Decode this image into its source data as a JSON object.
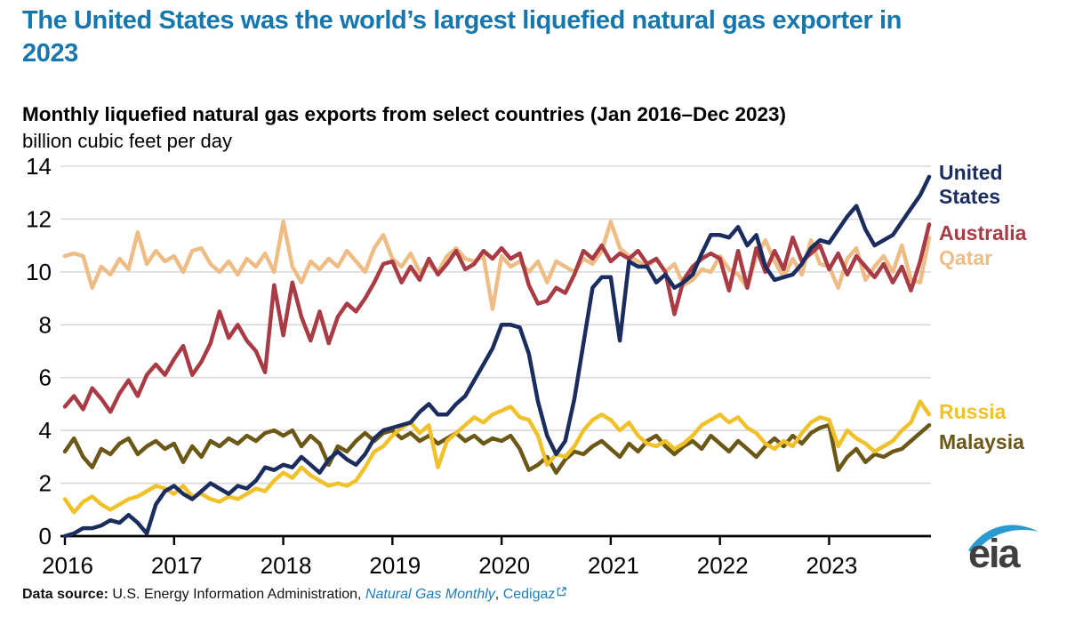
{
  "header": {
    "title_line1": "The United States was the world’s largest liquefied natural gas exporter in",
    "title_line2": "2023",
    "title_color": "#1577ad"
  },
  "chart_data": {
    "type": "line",
    "title": "Monthly liquefied natural gas exports from select countries (Jan 2016–Dec 2023)",
    "ylabel": "billion cubic feet per day",
    "xlabel": "",
    "ylim": [
      0,
      14
    ],
    "y_ticks": [
      0,
      2,
      4,
      6,
      8,
      10,
      12,
      14
    ],
    "x_tick_labels": [
      "2016",
      "2017",
      "2018",
      "2019",
      "2020",
      "2021",
      "2022",
      "2023"
    ],
    "months_span": "Jan 2016 - Dec 2023, monthly",
    "grid": "horizontal",
    "legend_position": "right",
    "axis_color": "#000000",
    "grid_color": "#d9d9d9",
    "series": [
      {
        "name": "United States",
        "color": "#1b2c5e",
        "values": [
          0.0,
          0.1,
          0.3,
          0.3,
          0.4,
          0.6,
          0.5,
          0.8,
          0.5,
          0.1,
          1.2,
          1.7,
          1.9,
          1.6,
          1.4,
          1.7,
          2.0,
          1.8,
          1.6,
          1.9,
          1.8,
          2.1,
          2.6,
          2.5,
          2.7,
          2.6,
          3.0,
          2.7,
          2.4,
          2.9,
          3.2,
          2.9,
          2.7,
          3.1,
          3.7,
          4.0,
          4.1,
          4.2,
          4.3,
          4.7,
          5.0,
          4.6,
          4.6,
          5.0,
          5.3,
          5.9,
          6.5,
          7.1,
          8.0,
          8.0,
          7.9,
          6.9,
          5.1,
          3.8,
          3.1,
          3.6,
          5.2,
          7.3,
          9.4,
          9.8,
          9.8,
          7.4,
          10.4,
          10.2,
          10.2,
          9.6,
          9.9,
          9.4,
          9.6,
          9.9,
          10.7,
          11.4,
          11.4,
          11.3,
          11.7,
          11.0,
          11.4,
          10.2,
          9.7,
          9.8,
          9.9,
          10.3,
          10.9,
          11.2,
          11.1,
          11.6,
          12.1,
          12.5,
          11.6,
          11.0,
          11.2,
          11.4,
          11.9,
          12.4,
          12.9,
          13.6
        ]
      },
      {
        "name": "Australia",
        "color": "#a93b45",
        "values": [
          4.9,
          5.3,
          4.8,
          5.6,
          5.2,
          4.7,
          5.4,
          5.9,
          5.3,
          6.1,
          6.5,
          6.1,
          6.7,
          7.2,
          6.1,
          6.6,
          7.3,
          8.5,
          7.5,
          8.0,
          7.4,
          7.0,
          6.2,
          9.5,
          7.6,
          9.6,
          8.3,
          7.4,
          8.5,
          7.3,
          8.3,
          8.8,
          8.5,
          9.0,
          9.6,
          10.3,
          10.4,
          9.6,
          10.2,
          9.7,
          10.5,
          9.9,
          10.3,
          10.8,
          10.1,
          10.3,
          10.8,
          10.5,
          10.9,
          10.5,
          10.7,
          9.5,
          8.8,
          8.9,
          9.4,
          9.2,
          9.9,
          10.8,
          10.5,
          11.0,
          10.4,
          10.7,
          10.5,
          10.8,
          10.3,
          10.5,
          10.0,
          8.4,
          9.7,
          10.2,
          10.5,
          10.7,
          10.5,
          9.3,
          10.8,
          9.4,
          10.9,
          10.0,
          10.8,
          10.1,
          11.3,
          10.4,
          10.7,
          11.0,
          10.1,
          10.7,
          9.9,
          10.6,
          10.2,
          9.8,
          10.3,
          9.6,
          10.2,
          9.3,
          10.4,
          11.8
        ]
      },
      {
        "name": "Qatar",
        "color": "#eebd86",
        "values": [
          10.6,
          10.7,
          10.6,
          9.4,
          10.2,
          9.9,
          10.5,
          10.1,
          11.5,
          10.3,
          10.8,
          10.4,
          10.6,
          10.0,
          10.8,
          10.9,
          10.3,
          10.0,
          10.4,
          9.9,
          10.5,
          10.2,
          10.7,
          10.0,
          11.9,
          10.2,
          9.6,
          10.4,
          10.1,
          10.5,
          10.2,
          10.8,
          10.4,
          10.0,
          10.9,
          11.4,
          10.5,
          10.2,
          10.7,
          10.0,
          10.3,
          10.0,
          10.6,
          10.9,
          10.5,
          10.4,
          10.6,
          8.6,
          10.6,
          10.2,
          10.4,
          10.0,
          10.4,
          9.6,
          10.4,
          10.2,
          10.0,
          10.5,
          10.3,
          10.8,
          11.9,
          10.9,
          10.6,
          10.4,
          10.2,
          10.5,
          10.0,
          10.3,
          9.5,
          9.7,
          10.1,
          10.0,
          10.6,
          10.1,
          9.9,
          9.4,
          10.6,
          11.2,
          10.4,
          9.8,
          10.5,
          9.9,
          11.2,
          10.3,
          10.2,
          9.4,
          10.5,
          10.9,
          9.7,
          10.2,
          10.6,
          10.0,
          11.0,
          9.7,
          9.6,
          11.3
        ]
      },
      {
        "name": "Russia",
        "color": "#f1c12b",
        "values": [
          1.4,
          0.9,
          1.3,
          1.5,
          1.2,
          1.0,
          1.2,
          1.4,
          1.5,
          1.7,
          1.9,
          1.8,
          1.6,
          1.9,
          1.5,
          1.6,
          1.4,
          1.3,
          1.5,
          1.4,
          1.6,
          1.8,
          1.7,
          2.1,
          2.4,
          2.2,
          2.6,
          2.3,
          2.1,
          1.9,
          2.0,
          1.9,
          2.1,
          2.6,
          3.2,
          3.4,
          3.8,
          4.1,
          4.3,
          3.9,
          4.2,
          2.6,
          3.6,
          3.9,
          4.2,
          4.5,
          4.3,
          4.6,
          4.75,
          4.9,
          4.5,
          4.4,
          3.8,
          2.7,
          3.1,
          3.0,
          3.4,
          4.0,
          4.4,
          4.6,
          4.4,
          4.0,
          4.3,
          3.8,
          3.5,
          3.4,
          3.6,
          3.3,
          3.5,
          3.8,
          4.2,
          4.4,
          4.6,
          4.3,
          4.5,
          4.1,
          3.9,
          3.5,
          3.3,
          3.6,
          3.4,
          3.9,
          4.3,
          4.5,
          4.4,
          3.4,
          4.0,
          3.7,
          3.5,
          3.2,
          3.4,
          3.6,
          4.0,
          4.3,
          5.1,
          4.6
        ]
      },
      {
        "name": "Malaysia",
        "color": "#6b5817",
        "values": [
          3.2,
          3.7,
          3.0,
          2.6,
          3.3,
          3.1,
          3.5,
          3.7,
          3.1,
          3.4,
          3.6,
          3.3,
          3.5,
          2.8,
          3.4,
          3.0,
          3.6,
          3.4,
          3.7,
          3.5,
          3.8,
          3.6,
          3.9,
          4.0,
          3.8,
          4.0,
          3.4,
          3.8,
          3.5,
          2.7,
          3.4,
          3.2,
          3.6,
          3.9,
          3.6,
          3.9,
          4.0,
          3.7,
          3.9,
          3.6,
          3.8,
          3.5,
          3.7,
          3.9,
          3.6,
          3.8,
          3.5,
          3.7,
          3.6,
          3.8,
          3.3,
          2.5,
          2.7,
          3.0,
          2.4,
          2.9,
          3.2,
          3.1,
          3.4,
          3.6,
          3.3,
          3.0,
          3.5,
          3.2,
          3.6,
          3.8,
          3.4,
          3.1,
          3.4,
          3.6,
          3.3,
          3.8,
          3.5,
          3.2,
          3.6,
          3.3,
          3.0,
          3.4,
          3.7,
          3.4,
          3.8,
          3.5,
          3.9,
          4.1,
          4.2,
          2.5,
          3.0,
          3.3,
          2.8,
          3.1,
          3.0,
          3.2,
          3.3,
          3.6,
          3.9,
          4.2
        ]
      }
    ]
  },
  "footer": {
    "label": "Data source: ",
    "org": "U.S. Energy Information Administration, ",
    "link1": "Natural Gas Monthly",
    "sep": ", ",
    "link2": "Cedigaz",
    "link_color": "#1c7cc0"
  },
  "logo": {
    "text": "eia",
    "swoosh_color": "#2b9ad3"
  }
}
